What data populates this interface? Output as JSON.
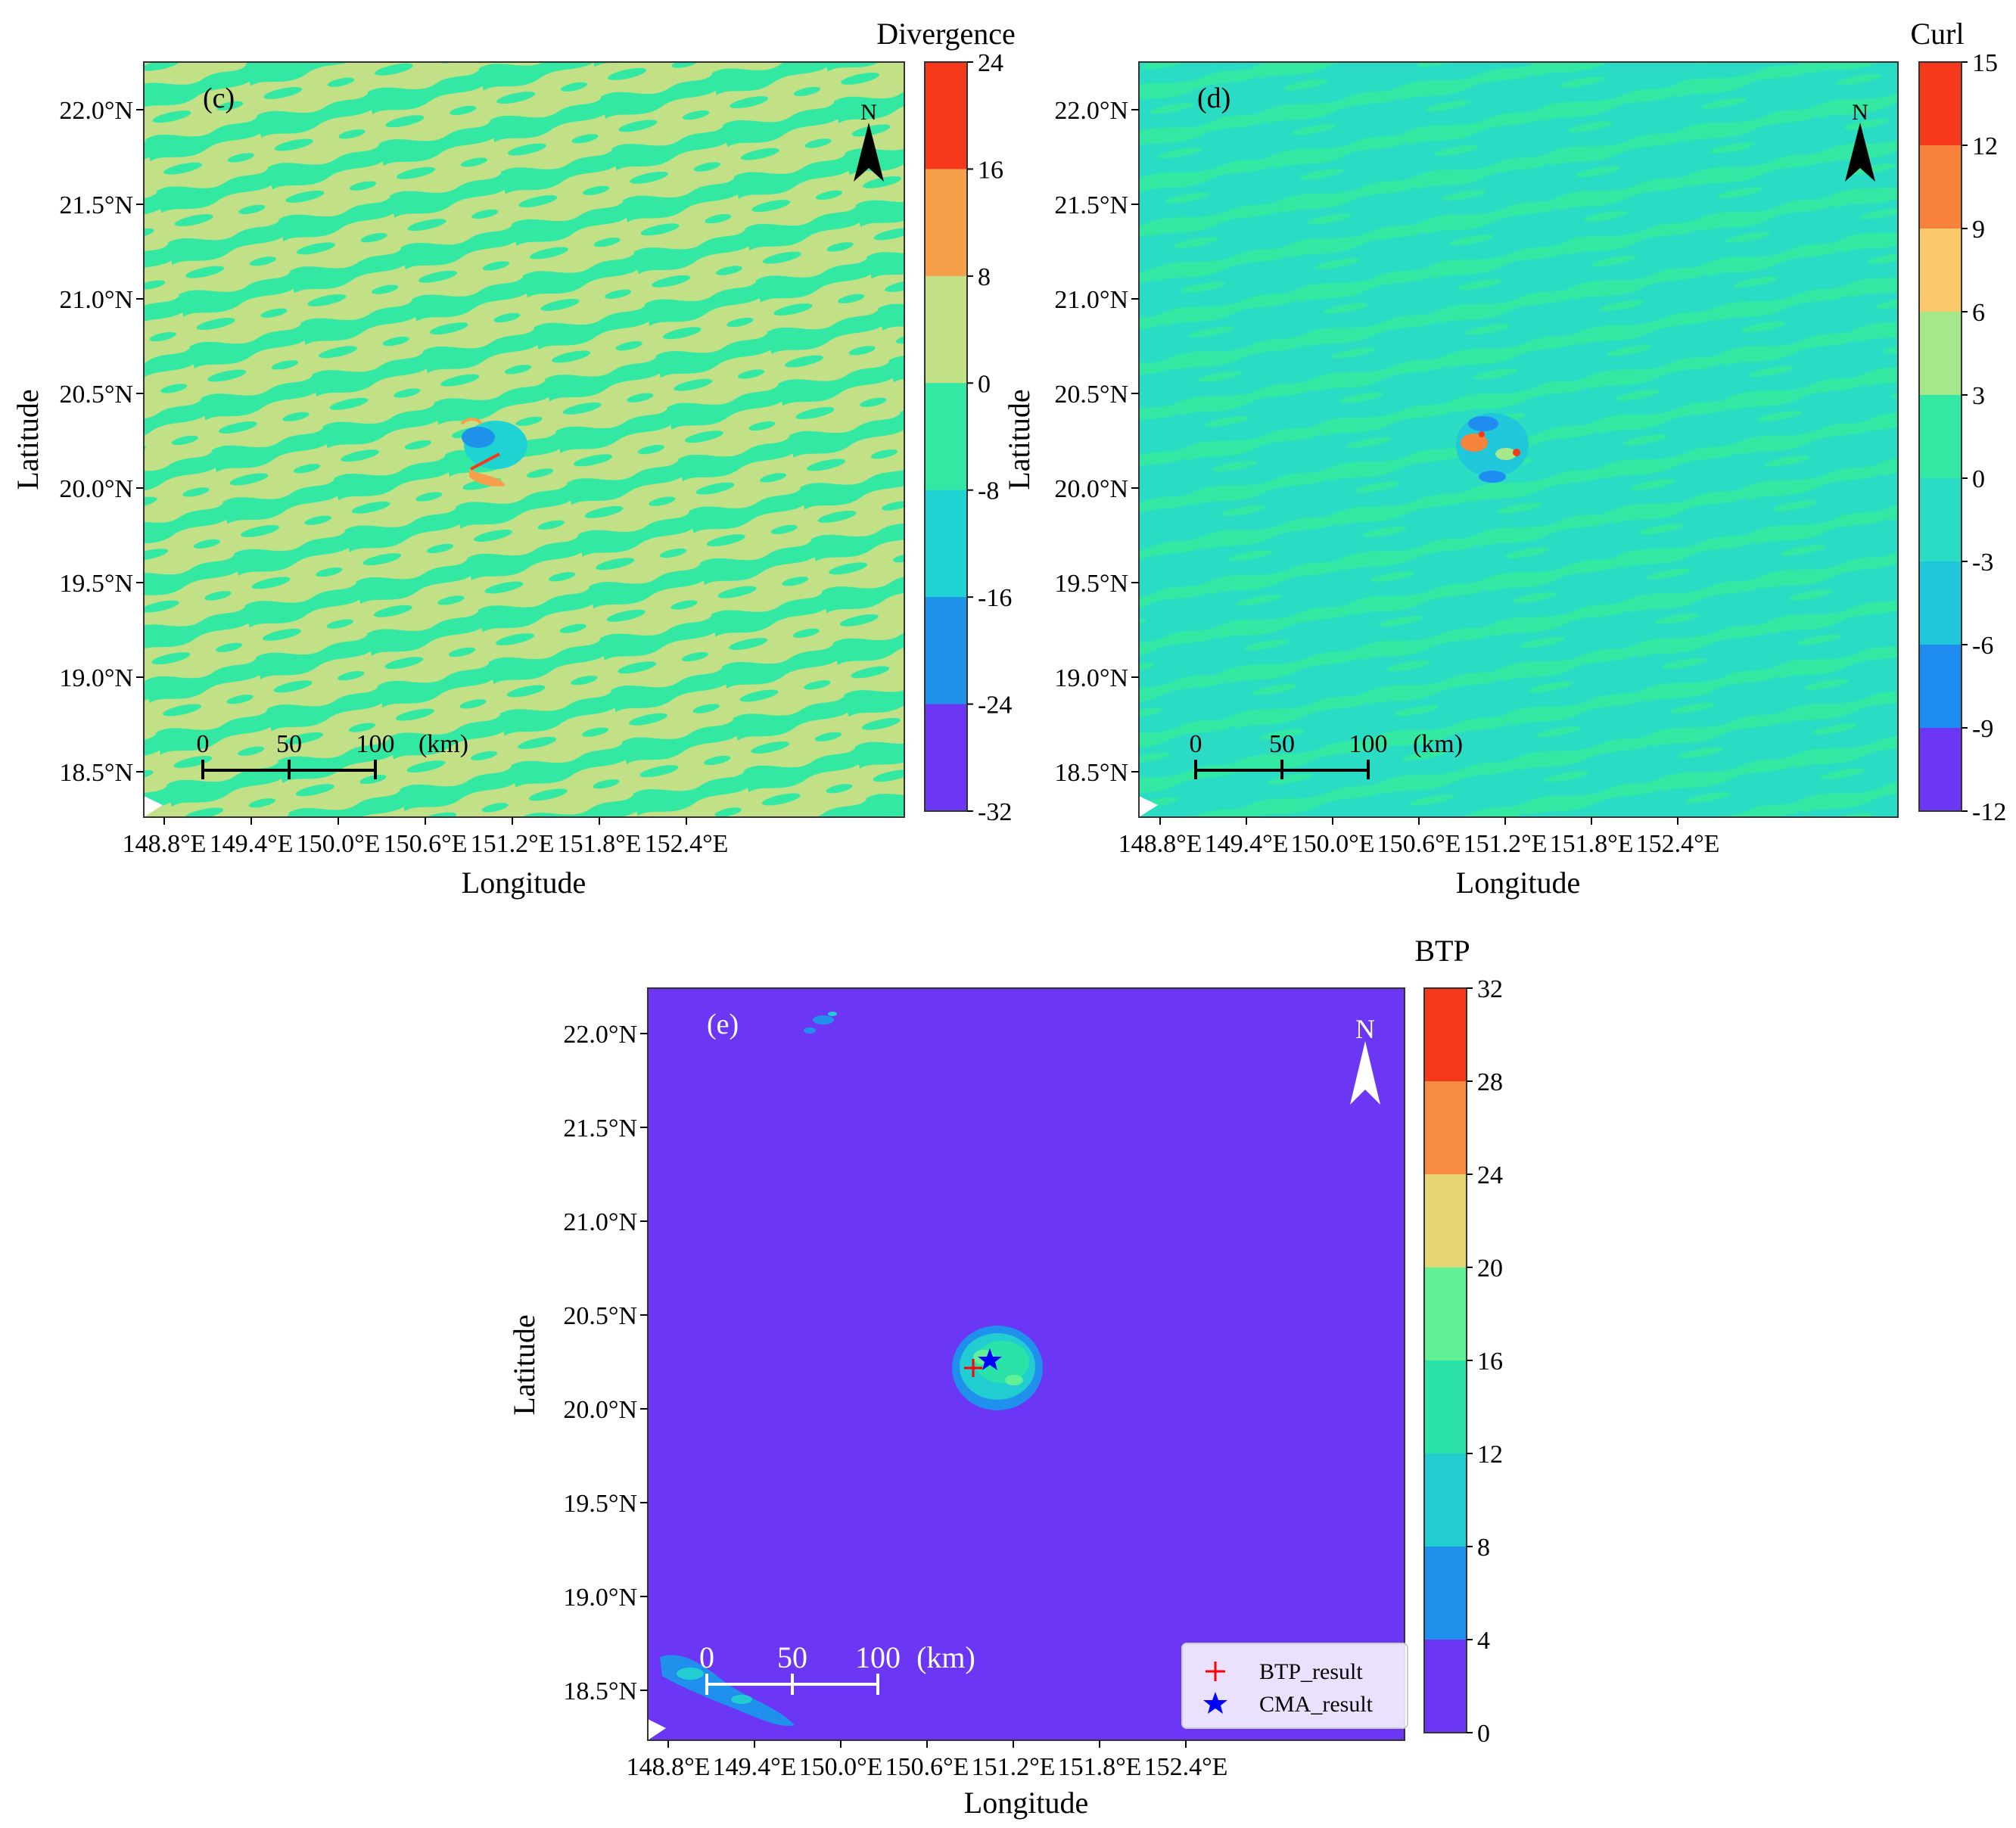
{
  "chart_data": [
    {
      "panel": "(c)",
      "type": "heatmap",
      "title": "",
      "xlabel": "Longitude",
      "ylabel": "Latitude",
      "x_ticks": [
        "148.8°E",
        "149.4°E",
        "150.0°E",
        "150.6°E",
        "151.2°E",
        "151.8°E",
        "152.4°E"
      ],
      "y_ticks": [
        "22.0°N",
        "21.5°N",
        "21.0°N",
        "20.5°N",
        "20.0°N",
        "19.5°N",
        "19.0°N",
        "18.5°N"
      ],
      "colorbar": {
        "title": "Divergence",
        "levels": [
          "24",
          "16",
          "8",
          "0",
          "-8",
          "-16",
          "-24",
          "-32"
        ],
        "colors": [
          "#f5391a",
          "#f7a04c",
          "#c2e186",
          "#32e8a2",
          "#20d3d3",
          "#1f93ea",
          "#6b37f4"
        ]
      },
      "background_colors": [
        "#c2e186",
        "#32e8a2"
      ],
      "center_feature": {
        "lon": 150.5,
        "lat": 20.25
      },
      "north_arrow": "N",
      "scale_bar": {
        "labels": [
          "0",
          "50",
          "100"
        ],
        "unit": "(km)"
      }
    },
    {
      "panel": "(d)",
      "type": "heatmap",
      "title": "",
      "xlabel": "Longitude",
      "ylabel": "Latitude",
      "x_ticks": [
        "148.8°E",
        "149.4°E",
        "150.0°E",
        "150.6°E",
        "151.2°E",
        "151.8°E",
        "152.4°E"
      ],
      "y_ticks": [
        "22.0°N",
        "21.5°N",
        "21.0°N",
        "20.5°N",
        "20.0°N",
        "19.5°N",
        "19.0°N",
        "18.5°N"
      ],
      "colorbar": {
        "title": "Curl",
        "levels": [
          "15",
          "12",
          "9",
          "6",
          "3",
          "0",
          "-3",
          "-6",
          "-9",
          "-12"
        ],
        "colors": [
          "#f5391a",
          "#f7823c",
          "#fac96c",
          "#a6e88c",
          "#32e8a2",
          "#2bdcc5",
          "#20c6d9",
          "#1f8df0",
          "#6b37f4"
        ]
      },
      "background_colors": [
        "#2bdcc5",
        "#32e8a2"
      ],
      "center_feature": {
        "lon": 150.6,
        "lat": 20.25
      },
      "north_arrow": "N",
      "scale_bar": {
        "labels": [
          "0",
          "50",
          "100"
        ],
        "unit": "(km)"
      }
    },
    {
      "panel": "(e)",
      "type": "heatmap",
      "title": "",
      "xlabel": "Longitude",
      "ylabel": "Latitude",
      "x_ticks": [
        "148.8°E",
        "149.4°E",
        "150.0°E",
        "150.6°E",
        "151.2°E",
        "151.8°E",
        "152.4°E"
      ],
      "y_ticks": [
        "22.0°N",
        "21.5°N",
        "21.0°N",
        "20.5°N",
        "20.0°N",
        "19.5°N",
        "19.0°N",
        "18.5°N"
      ],
      "colorbar": {
        "title": "BTP",
        "levels": [
          "32",
          "28",
          "24",
          "20",
          "16",
          "12",
          "8",
          "4",
          "0"
        ],
        "colors": [
          "#f5391a",
          "#f78b42",
          "#e7d573",
          "#62f096",
          "#2be3a9",
          "#22cdd2",
          "#1f91ec",
          "#6b37f4"
        ]
      },
      "background_colors": [
        "#6b37f4"
      ],
      "markers": [
        {
          "name": "BTP_result",
          "symbol": "+",
          "color": "#ff0000",
          "lon": 150.45,
          "lat": 20.25
        },
        {
          "name": "CMA_result",
          "symbol": "star",
          "color": "#0000ff",
          "lon": 150.52,
          "lat": 20.3
        }
      ],
      "north_arrow": "N",
      "scale_bar": {
        "labels": [
          "0",
          "50",
          "100"
        ],
        "unit": "(km)"
      },
      "legend": {
        "position": "lower-right",
        "entries": [
          "BTP_result",
          "CMA_result"
        ]
      }
    }
  ]
}
